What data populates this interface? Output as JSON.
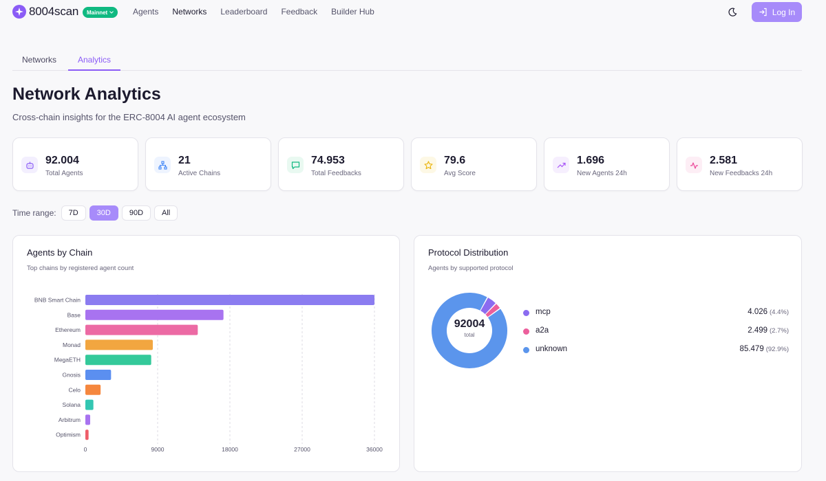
{
  "brand": {
    "name": "8004scan",
    "network_badge": "Mainnet"
  },
  "nav": {
    "links": [
      "Agents",
      "Networks",
      "Leaderboard",
      "Feedback",
      "Builder Hub"
    ],
    "active": "Networks",
    "login_label": "Log In"
  },
  "tabs": {
    "networks": "Networks",
    "analytics": "Analytics",
    "active": "Analytics"
  },
  "page": {
    "title": "Network Analytics",
    "subtitle": "Cross-chain insights for the ERC-8004 AI agent ecosystem"
  },
  "stats": [
    {
      "value": "92.004",
      "label": "Total Agents",
      "icon": "robot-icon",
      "color": "#8b5cf6"
    },
    {
      "value": "21",
      "label": "Active Chains",
      "icon": "network-icon",
      "color": "#3b82f6"
    },
    {
      "value": "74.953",
      "label": "Total Feedbacks",
      "icon": "chat-icon",
      "color": "#10b981"
    },
    {
      "value": "79.6",
      "label": "Avg Score",
      "icon": "star-icon",
      "color": "#eab308"
    },
    {
      "value": "1.696",
      "label": "New Agents 24h",
      "icon": "trending-up-icon",
      "color": "#a855f7"
    },
    {
      "value": "2.581",
      "label": "New Feedbacks 24h",
      "icon": "activity-icon",
      "color": "#ec4899"
    }
  ],
  "time_range": {
    "label": "Time range:",
    "options": [
      "7D",
      "30D",
      "90D",
      "All"
    ],
    "selected": "30D"
  },
  "panels": {
    "agents_by_chain": {
      "title": "Agents by Chain",
      "subtitle": "Top chains by registered agent count"
    },
    "protocol_distribution": {
      "title": "Protocol Distribution",
      "subtitle": "Agents by supported protocol"
    }
  },
  "chart_data": [
    {
      "type": "bar",
      "orientation": "horizontal",
      "title": "Agents by Chain",
      "subtitle": "Top chains by registered agent count",
      "categories": [
        "BNB Smart Chain",
        "Base",
        "Ethereum",
        "Monad",
        "MegaETH",
        "Gnosis",
        "Celo",
        "Solana",
        "Arbitrum",
        "Optimism"
      ],
      "values": [
        36000,
        17200,
        14000,
        8400,
        8200,
        3200,
        1900,
        1000,
        600,
        400
      ],
      "colors": [
        "#8b7cf0",
        "#a873f0",
        "#ec6aa4",
        "#f2a640",
        "#34c99a",
        "#5b8ff0",
        "#f5873e",
        "#33c6b2",
        "#a873f0",
        "#ee5e6a"
      ],
      "xticks": [
        "0",
        "9000",
        "18000",
        "27000",
        "36000"
      ],
      "xlim": [
        0,
        36000
      ],
      "grid": true
    },
    {
      "type": "pie",
      "variant": "donut",
      "title": "Protocol Distribution",
      "subtitle": "Agents by supported protocol",
      "center_value": "92004",
      "center_label": "total",
      "slices": [
        {
          "label": "mcp",
          "value": 4026,
          "display": "4.026",
          "percent": "(4.4%)",
          "color": "#8b6cf0"
        },
        {
          "label": "a2a",
          "value": 2499,
          "display": "2.499",
          "percent": "(2.7%)",
          "color": "#ec5f9c"
        },
        {
          "label": "unknown",
          "value": 85479,
          "display": "85.479",
          "percent": "(92.9%)",
          "color": "#5b95ec"
        }
      ]
    }
  ]
}
